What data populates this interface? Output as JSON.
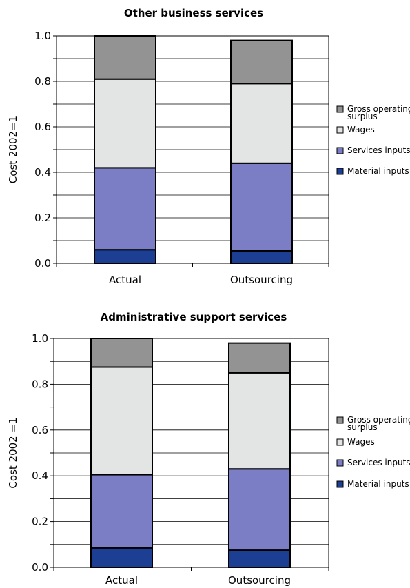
{
  "colors": {
    "gross_operating_surplus": "#939393",
    "wages": "#e3e5e4",
    "services_inputs": "#7b7ec4",
    "material_inputs": "#1c3f94",
    "outline": "#000000",
    "grid": "#000000"
  },
  "chart_data": [
    {
      "type": "bar",
      "stacked": true,
      "title": "Other business services",
      "xlabel": "",
      "ylabel": "Cost 2002=1",
      "ylim": [
        0,
        1.0
      ],
      "yticks": [
        "0.0",
        "0.2",
        "0.4",
        "0.6",
        "0.8",
        "1.0"
      ],
      "categories": [
        "Actual",
        "Outsourcing"
      ],
      "grid": true,
      "legend_position": "right",
      "series": [
        {
          "name": "Material inputs",
          "color_key": "material_inputs",
          "values": [
            0.06,
            0.055
          ]
        },
        {
          "name": "Services inputs",
          "color_key": "services_inputs",
          "values": [
            0.36,
            0.385
          ]
        },
        {
          "name": "Wages",
          "color_key": "wages",
          "values": [
            0.39,
            0.35
          ]
        },
        {
          "name": "Gross operating surplus",
          "color_key": "gross_operating_surplus",
          "values": [
            0.19,
            0.19
          ]
        }
      ],
      "legend": [
        "Gross operating surplus",
        "Wages",
        "Services inputs",
        "Material inputs"
      ]
    },
    {
      "type": "bar",
      "stacked": true,
      "title": "Administrative support services",
      "xlabel": "",
      "ylabel": "Cost 2002 =1",
      "ylim": [
        0,
        1.0
      ],
      "yticks": [
        "0.0",
        "0.2",
        "0.4",
        "0.6",
        "0.8",
        "1.0"
      ],
      "categories": [
        "Actual",
        "Outsourcing"
      ],
      "grid": true,
      "legend_position": "right",
      "series": [
        {
          "name": "Material inputs",
          "color_key": "material_inputs",
          "values": [
            0.085,
            0.075
          ]
        },
        {
          "name": "Services inputs",
          "color_key": "services_inputs",
          "values": [
            0.32,
            0.355
          ]
        },
        {
          "name": "Wages",
          "color_key": "wages",
          "values": [
            0.47,
            0.42
          ]
        },
        {
          "name": "Gross operating surplus",
          "color_key": "gross_operating_surplus",
          "values": [
            0.125,
            0.13
          ]
        }
      ],
      "legend": [
        "Gross operating surplus",
        "Wages",
        "Services inputs",
        "Material inputs"
      ]
    }
  ]
}
